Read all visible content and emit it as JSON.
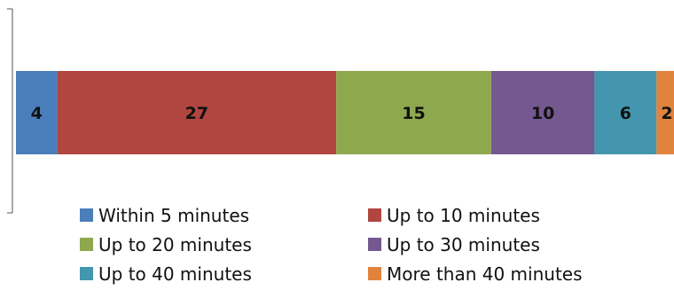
{
  "chart_data": {
    "type": "bar",
    "orientation": "horizontal",
    "stacked": true,
    "categories": [
      ""
    ],
    "title": "",
    "xlabel": "",
    "ylabel": "",
    "grid": false,
    "legend_position": "bottom",
    "series": [
      {
        "name": "Within 5 minutes",
        "values": [
          4
        ],
        "color": "#4a7ebb"
      },
      {
        "name": "Up to 10 minutes",
        "values": [
          27
        ],
        "color": "#b0463f"
      },
      {
        "name": "Up to 20 minutes",
        "values": [
          15
        ],
        "color": "#8ea84d"
      },
      {
        "name": "Up to 30 minutes",
        "values": [
          10
        ],
        "color": "#735990"
      },
      {
        "name": "Up to 40 minutes",
        "values": [
          6
        ],
        "color": "#4396ad"
      },
      {
        "name": "More than 40 minutes",
        "values": [
          2
        ],
        "color": "#e2833d"
      }
    ]
  }
}
